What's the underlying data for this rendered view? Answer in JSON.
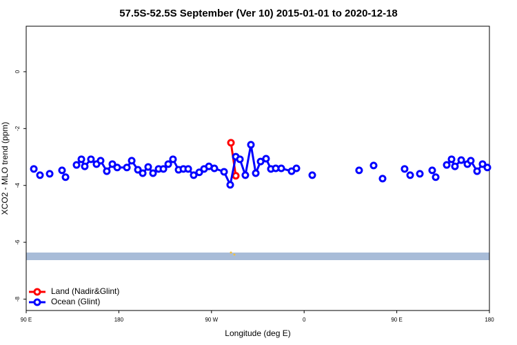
{
  "chart_data": {
    "type": "line",
    "title": "57.5S-52.5S September (Ver 10)   2015-01-01 to 2020-12-18",
    "x_label": "Longitude (deg E)",
    "y_label": "XCO2 - MLO trend (ppm)",
    "xlim": [
      90,
      540
    ],
    "xticks": [
      {
        "value": 90,
        "label": "90 E"
      },
      180,
      {
        "value": 270,
        "label": "90 W"
      },
      {
        "value": 360,
        "label": "0"
      },
      {
        "value": 450,
        "label": "90 E"
      },
      {
        "value": 540,
        "label": "180"
      }
    ],
    "ylim": [
      -8.4,
      1.6
    ],
    "yticks": [
      0,
      -2,
      -4,
      -6,
      -8
    ],
    "legend": "bottom-left",
    "series": [
      {
        "name": "Land (Nadir&Glint)",
        "color": "#ff0000",
        "x": [
          288.9,
          293.6
        ],
        "values": [
          -2.5,
          -3.66
        ]
      },
      {
        "name": "Ocean (Glint)",
        "color": "#0000ff",
        "x": [
          97.4,
          null,
          103.4,
          null,
          112.8,
          null,
          124.8,
          null,
          128.2,
          null,
          138.9,
          143.6,
          146.9,
          152.9,
          158.3,
          162.3,
          168.3,
          173.7,
          178.4,
          187.8,
          192.5,
          198.5,
          203.2,
          208.5,
          213.2,
          218.6,
          223.3,
          228.0,
          232.6,
          238.0,
          242.7,
          247.4,
          252.7,
          258.1,
          262.8,
          267.5,
          272.8,
          282.2,
          288.2,
          293.6,
          297.6,
          302.9,
          308.3,
          313.0,
          317.7,
          323.0,
          327.7,
          332.4,
          337.8,
          347.8,
          352.5,
          null,
          367.9,
          null,
          413.4,
          null,
          427.5,
          null,
          436.2,
          null,
          457.6,
          null,
          463.0,
          null,
          472.4,
          null,
          484.4,
          null,
          487.8,
          null,
          498.5,
          503.2,
          506.5,
          512.6,
          518.6,
          521.9,
          528.0,
          533.3,
          538.0
        ],
        "values": [
          -3.42,
          null,
          -3.64,
          null,
          -3.59,
          null,
          -3.47,
          null,
          -3.71,
          null,
          -3.28,
          -3.08,
          -3.33,
          -3.08,
          -3.25,
          -3.13,
          -3.5,
          -3.25,
          -3.37,
          -3.37,
          -3.13,
          -3.45,
          -3.57,
          -3.35,
          -3.57,
          -3.42,
          -3.42,
          -3.25,
          -3.08,
          -3.45,
          -3.42,
          -3.42,
          -3.64,
          -3.54,
          -3.42,
          -3.33,
          -3.4,
          -3.52,
          -3.98,
          -2.99,
          -3.08,
          -3.64,
          -2.57,
          -3.57,
          -3.16,
          -3.06,
          -3.42,
          -3.4,
          -3.4,
          -3.5,
          -3.4,
          null,
          -3.64,
          null,
          -3.47,
          null,
          -3.3,
          null,
          -3.76,
          null,
          -3.42,
          null,
          -3.64,
          null,
          -3.59,
          null,
          -3.47,
          null,
          -3.71,
          null,
          -3.28,
          -3.08,
          -3.33,
          -3.11,
          -3.25,
          -3.13,
          -3.5,
          -3.25,
          -3.37
        ]
      }
    ]
  }
}
